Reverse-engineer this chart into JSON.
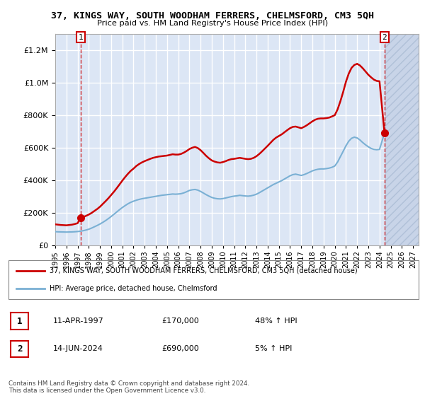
{
  "title": "37, KINGS WAY, SOUTH WOODHAM FERRERS, CHELMSFORD, CM3 5QH",
  "subtitle": "Price paid vs. HM Land Registry's House Price Index (HPI)",
  "legend_line1": "37, KINGS WAY, SOUTH WOODHAM FERRERS, CHELMSFORD, CM3 5QH (detached house)",
  "legend_line2": "HPI: Average price, detached house, Chelmsford",
  "annotation1_label": "1",
  "annotation1_date": "11-APR-1997",
  "annotation1_price": "£170,000",
  "annotation1_hpi": "48% ↑ HPI",
  "annotation2_label": "2",
  "annotation2_date": "14-JUN-2024",
  "annotation2_price": "£690,000",
  "annotation2_hpi": "5% ↑ HPI",
  "footer": "Contains HM Land Registry data © Crown copyright and database right 2024.\nThis data is licensed under the Open Government Licence v3.0.",
  "plot_bg": "#dce6f5",
  "grid_color": "#ffffff",
  "red_line_color": "#cc0000",
  "blue_line_color": "#7ab0d4",
  "ylim": [
    0,
    1300000
  ],
  "xlim_start": 1995.0,
  "xlim_end": 2027.5,
  "x_ticks": [
    1995,
    1996,
    1997,
    1998,
    1999,
    2000,
    2001,
    2002,
    2003,
    2004,
    2005,
    2006,
    2007,
    2008,
    2009,
    2010,
    2011,
    2012,
    2013,
    2014,
    2015,
    2016,
    2017,
    2018,
    2019,
    2020,
    2021,
    2022,
    2023,
    2024,
    2025,
    2026,
    2027
  ],
  "hatch_start": 2024.5,
  "sale1_x": 1997.27,
  "sale1_y": 170000,
  "sale2_x": 2024.45,
  "sale2_y": 690000,
  "line_x": [
    1995.0,
    1995.25,
    1995.5,
    1995.75,
    1996.0,
    1996.25,
    1996.5,
    1996.75,
    1997.0,
    1997.27,
    1997.5,
    1997.75,
    1998.0,
    1998.25,
    1998.5,
    1998.75,
    1999.0,
    1999.25,
    1999.5,
    1999.75,
    2000.0,
    2000.25,
    2000.5,
    2000.75,
    2001.0,
    2001.25,
    2001.5,
    2001.75,
    2002.0,
    2002.25,
    2002.5,
    2002.75,
    2003.0,
    2003.25,
    2003.5,
    2003.75,
    2004.0,
    2004.25,
    2004.5,
    2004.75,
    2005.0,
    2005.25,
    2005.5,
    2005.75,
    2006.0,
    2006.25,
    2006.5,
    2006.75,
    2007.0,
    2007.25,
    2007.5,
    2007.75,
    2008.0,
    2008.25,
    2008.5,
    2008.75,
    2009.0,
    2009.25,
    2009.5,
    2009.75,
    2010.0,
    2010.25,
    2010.5,
    2010.75,
    2011.0,
    2011.25,
    2011.5,
    2011.75,
    2012.0,
    2012.25,
    2012.5,
    2012.75,
    2013.0,
    2013.25,
    2013.5,
    2013.75,
    2014.0,
    2014.25,
    2014.5,
    2014.75,
    2015.0,
    2015.25,
    2015.5,
    2015.75,
    2016.0,
    2016.25,
    2016.5,
    2016.75,
    2017.0,
    2017.25,
    2017.5,
    2017.75,
    2018.0,
    2018.25,
    2018.5,
    2018.75,
    2019.0,
    2019.25,
    2019.5,
    2019.75,
    2020.0,
    2020.25,
    2020.5,
    2020.75,
    2021.0,
    2021.25,
    2021.5,
    2021.75,
    2022.0,
    2022.25,
    2022.5,
    2022.75,
    2023.0,
    2023.25,
    2023.5,
    2023.75,
    2024.0,
    2024.45
  ],
  "red_line_y": [
    130000,
    128000,
    126000,
    125000,
    124000,
    126000,
    128000,
    132000,
    137000,
    170000,
    175000,
    182000,
    190000,
    200000,
    212000,
    224000,
    238000,
    255000,
    272000,
    290000,
    310000,
    330000,
    352000,
    375000,
    398000,
    420000,
    440000,
    458000,
    472000,
    488000,
    500000,
    510000,
    518000,
    525000,
    532000,
    538000,
    542000,
    546000,
    548000,
    550000,
    552000,
    556000,
    560000,
    558000,
    558000,
    562000,
    570000,
    580000,
    592000,
    600000,
    605000,
    598000,
    585000,
    568000,
    550000,
    535000,
    522000,
    515000,
    510000,
    508000,
    512000,
    518000,
    525000,
    530000,
    532000,
    535000,
    538000,
    535000,
    532000,
    530000,
    532000,
    538000,
    548000,
    562000,
    578000,
    595000,
    612000,
    630000,
    648000,
    662000,
    672000,
    682000,
    695000,
    708000,
    720000,
    728000,
    730000,
    725000,
    720000,
    728000,
    738000,
    750000,
    762000,
    772000,
    778000,
    780000,
    780000,
    782000,
    785000,
    792000,
    800000,
    835000,
    885000,
    942000,
    1005000,
    1055000,
    1090000,
    1108000,
    1115000,
    1105000,
    1088000,
    1068000,
    1048000,
    1032000,
    1018000,
    1010000,
    1008000,
    690000
  ],
  "blue_line_y": [
    85000,
    84000,
    83500,
    83000,
    82500,
    83000,
    83500,
    84500,
    86000,
    88000,
    91000,
    95000,
    100000,
    107000,
    115000,
    123000,
    132000,
    142000,
    153000,
    165000,
    178000,
    192000,
    206000,
    220000,
    233000,
    245000,
    256000,
    265000,
    272000,
    278000,
    283000,
    287000,
    290000,
    293000,
    296000,
    299000,
    302000,
    305000,
    308000,
    310000,
    312000,
    314000,
    316000,
    315000,
    316000,
    318000,
    323000,
    330000,
    338000,
    342000,
    344000,
    340000,
    332000,
    322000,
    312000,
    303000,
    295000,
    290000,
    287000,
    286000,
    288000,
    292000,
    296000,
    300000,
    303000,
    305000,
    308000,
    306000,
    304000,
    303000,
    305000,
    309000,
    315000,
    324000,
    334000,
    344000,
    354000,
    364000,
    374000,
    382000,
    390000,
    398000,
    408000,
    418000,
    428000,
    435000,
    438000,
    434000,
    430000,
    435000,
    442000,
    450000,
    458000,
    464000,
    468000,
    470000,
    470000,
    472000,
    475000,
    480000,
    488000,
    512000,
    545000,
    578000,
    612000,
    640000,
    658000,
    665000,
    660000,
    648000,
    632000,
    618000,
    606000,
    596000,
    590000,
    588000,
    590000,
    690000
  ]
}
